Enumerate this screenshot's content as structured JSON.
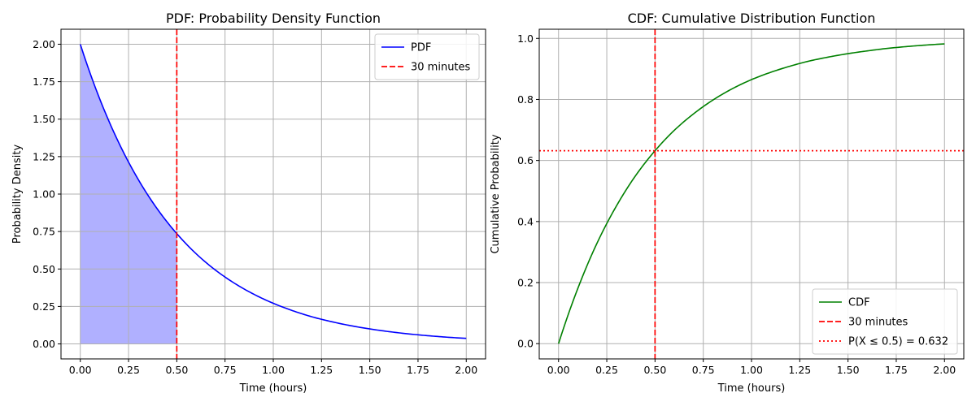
{
  "chart_data": [
    {
      "type": "line",
      "title": "PDF: Probability Density Function",
      "xlabel": "Time (hours)",
      "ylabel": "Probability Density",
      "xlim": [
        -0.1,
        2.1
      ],
      "ylim": [
        -0.1,
        2.1
      ],
      "xticks": [
        "0.00",
        "0.25",
        "0.50",
        "0.75",
        "1.00",
        "1.25",
        "1.50",
        "1.75",
        "2.00"
      ],
      "yticks": [
        "0.00",
        "0.25",
        "0.50",
        "0.75",
        "1.00",
        "1.25",
        "1.50",
        "1.75",
        "2.00"
      ],
      "grid": true,
      "legend_position": "upper right",
      "series": [
        {
          "name": "PDF",
          "color": "#0000ff",
          "style": "solid",
          "x": [
            0,
            0.1,
            0.2,
            0.3,
            0.4,
            0.5,
            0.6,
            0.7,
            0.8,
            0.9,
            1.0,
            1.1,
            1.2,
            1.3,
            1.4,
            1.5,
            1.6,
            1.7,
            1.8,
            1.9,
            2.0
          ],
          "y": [
            2.0,
            1.637,
            1.341,
            1.098,
            0.899,
            0.736,
            0.602,
            0.493,
            0.404,
            0.331,
            0.271,
            0.222,
            0.181,
            0.149,
            0.122,
            0.1,
            0.082,
            0.067,
            0.055,
            0.045,
            0.037
          ]
        },
        {
          "name": "30 minutes",
          "color": "#ff0000",
          "style": "dashed",
          "vline_x": 0.5
        }
      ],
      "shaded_area": {
        "x_from": 0,
        "x_to": 0.5,
        "color": "#b0b0ff"
      }
    },
    {
      "type": "line",
      "title": "CDF: Cumulative Distribution Function",
      "xlabel": "Time (hours)",
      "ylabel": "Cumulative Probability",
      "xlim": [
        -0.1,
        2.1
      ],
      "ylim": [
        -0.05,
        1.03
      ],
      "xticks": [
        "0.00",
        "0.25",
        "0.50",
        "0.75",
        "1.00",
        "1.25",
        "1.50",
        "1.75",
        "2.00"
      ],
      "yticks": [
        "0.0",
        "0.2",
        "0.4",
        "0.6",
        "0.8",
        "1.0"
      ],
      "grid": true,
      "legend_position": "lower right",
      "series": [
        {
          "name": "CDF",
          "color": "#008000",
          "style": "solid",
          "x": [
            0,
            0.1,
            0.2,
            0.3,
            0.4,
            0.5,
            0.6,
            0.7,
            0.8,
            0.9,
            1.0,
            1.1,
            1.2,
            1.3,
            1.4,
            1.5,
            1.6,
            1.7,
            1.8,
            1.9,
            2.0
          ],
          "y": [
            0.0,
            0.181,
            0.33,
            0.451,
            0.551,
            0.632,
            0.699,
            0.753,
            0.798,
            0.835,
            0.865,
            0.889,
            0.909,
            0.926,
            0.939,
            0.95,
            0.959,
            0.967,
            0.973,
            0.978,
            0.982
          ]
        },
        {
          "name": "30 minutes",
          "color": "#ff0000",
          "style": "dashed",
          "vline_x": 0.5
        },
        {
          "name": "P(X ≤ 0.5) = 0.632",
          "color": "#ff0000",
          "style": "dotted",
          "hline_y": 0.632
        }
      ]
    }
  ]
}
